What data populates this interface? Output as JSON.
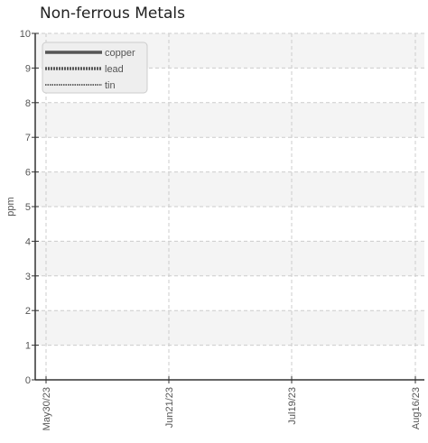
{
  "chart_data": {
    "type": "line",
    "title": "Non-ferrous Metals",
    "xlabel": "",
    "ylabel": "ppm",
    "x_ticks": [
      "May30/23",
      "Jun21/23",
      "Jul19/23",
      "Aug16/23"
    ],
    "xlim": [
      "2023-05-30",
      "2023-08-16"
    ],
    "ylim": [
      0,
      10
    ],
    "y_ticks": [
      "0",
      "1",
      "2",
      "3",
      "4",
      "5",
      "6",
      "7",
      "8",
      "9",
      "10"
    ],
    "grid": true,
    "legend_position": "top-left",
    "series": [
      {
        "name": "copper",
        "values": [],
        "line_style": "solid",
        "color": "#555555"
      },
      {
        "name": "lead",
        "values": [],
        "line_style": "dotted-heavy",
        "color": "#555555"
      },
      {
        "name": "tin",
        "values": [],
        "line_style": "dotted-light",
        "color": "#666666"
      }
    ]
  }
}
